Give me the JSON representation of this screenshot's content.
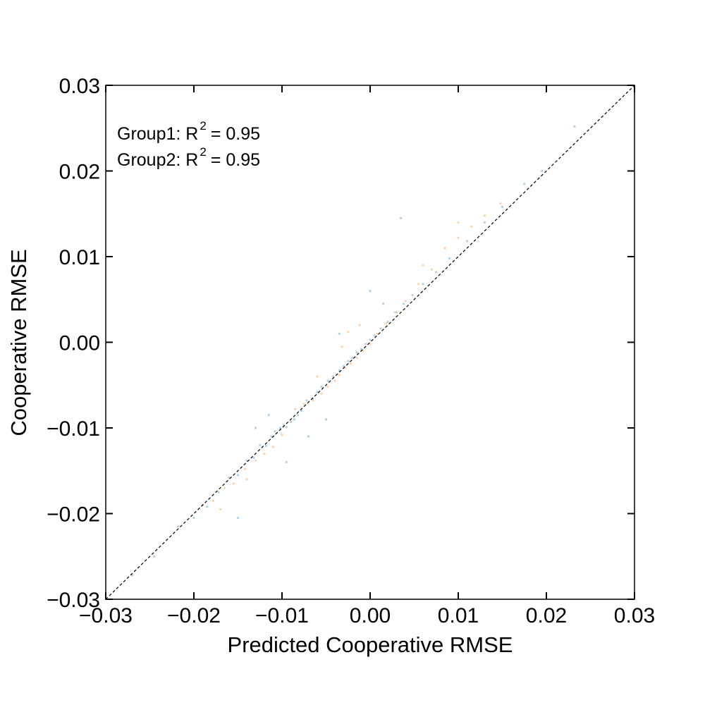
{
  "chart_data": {
    "type": "scatter",
    "title": "",
    "xlabel": "Predicted Cooperative RMSE",
    "ylabel": "Cooperative RMSE",
    "xlim": [
      -0.03,
      0.03
    ],
    "ylim": [
      -0.03,
      0.03
    ],
    "xticks": [
      "−0.03",
      "−0.02",
      "−0.01",
      "0.00",
      "0.01",
      "0.02",
      "0.03"
    ],
    "yticks": [
      "−0.03",
      "−0.02",
      "−0.01",
      "0.00",
      "0.01",
      "0.02",
      "0.03"
    ],
    "tick_values": [
      -0.03,
      -0.02,
      -0.01,
      0.0,
      0.01,
      0.02,
      0.03
    ],
    "grid": false,
    "reference_line": {
      "style": "dashed",
      "color": "#000000",
      "from": [
        -0.03,
        -0.03
      ],
      "to": [
        0.03,
        0.03
      ]
    },
    "annotations": [
      {
        "label": "Group1: R",
        "sup": "2",
        "value": "= 0.95"
      },
      {
        "label": "Group2: R",
        "sup": "2",
        "value": "= 0.95"
      }
    ],
    "series": [
      {
        "color": "#1f77b4",
        "points": [
          [
            -0.027,
            -0.0272
          ],
          [
            -0.0245,
            -0.025
          ],
          [
            -0.0218,
            -0.0215
          ],
          [
            -0.02,
            -0.0205
          ],
          [
            -0.0185,
            -0.0192
          ],
          [
            -0.0172,
            -0.0175
          ],
          [
            -0.016,
            -0.0158
          ],
          [
            -0.015,
            -0.0155
          ],
          [
            -0.014,
            -0.0138
          ],
          [
            -0.0132,
            -0.0135
          ],
          [
            -0.0125,
            -0.012
          ],
          [
            -0.0118,
            -0.0121
          ],
          [
            -0.0112,
            -0.011
          ],
          [
            -0.0108,
            -0.0104
          ],
          [
            -0.0102,
            -0.01
          ],
          [
            -0.0098,
            -0.0097
          ],
          [
            -0.0095,
            -0.0099
          ],
          [
            -0.009,
            -0.0093
          ],
          [
            -0.0086,
            -0.009
          ],
          [
            -0.0082,
            -0.0085
          ],
          [
            -0.0078,
            -0.008
          ],
          [
            -0.0072,
            -0.0068
          ],
          [
            -0.0065,
            -0.0066
          ],
          [
            -0.006,
            -0.0058
          ],
          [
            -0.0055,
            -0.0052
          ],
          [
            -0.0048,
            -0.0045
          ],
          [
            -0.0042,
            -0.004
          ],
          [
            -0.0035,
            -0.0033
          ],
          [
            -0.003,
            -0.0028
          ],
          [
            -0.0025,
            -0.0022
          ],
          [
            -0.002,
            -0.0018
          ],
          [
            -0.0015,
            -0.0012
          ],
          [
            -0.001,
            -0.0008
          ],
          [
            -0.0005,
            -0.0002
          ],
          [
            0.0,
            0.0003
          ],
          [
            0.0005,
            0.0008
          ],
          [
            0.0012,
            0.0016
          ],
          [
            0.002,
            0.0024
          ],
          [
            0.003,
            0.0035
          ],
          [
            0.0038,
            0.0045
          ],
          [
            0.0048,
            0.0055
          ],
          [
            0.006,
            0.0068
          ],
          [
            0.0075,
            0.0082
          ],
          [
            0.009,
            0.0098
          ],
          [
            0.011,
            0.0118
          ],
          [
            0.013,
            0.014
          ],
          [
            0.015,
            0.0158
          ],
          [
            0.0175,
            0.0185
          ],
          [
            0.0195,
            0.02
          ],
          [
            0.0232,
            0.0252
          ],
          [
            -0.0115,
            -0.0085
          ],
          [
            -0.007,
            -0.011
          ],
          [
            -0.0035,
            0.001
          ],
          [
            0.0035,
            0.0145
          ],
          [
            -0.015,
            -0.0205
          ],
          [
            -0.0095,
            -0.014
          ],
          [
            0.0,
            0.006
          ],
          [
            -0.005,
            -0.009
          ],
          [
            0.0015,
            0.0045
          ],
          [
            -0.013,
            -0.01
          ]
        ]
      },
      {
        "color": "#ff7f0e",
        "points": [
          [
            -0.019,
            -0.019
          ],
          [
            -0.0178,
            -0.0185
          ],
          [
            -0.0165,
            -0.017
          ],
          [
            -0.0155,
            -0.0165
          ],
          [
            -0.0142,
            -0.0148
          ],
          [
            -0.013,
            -0.0138
          ],
          [
            -0.012,
            -0.013
          ],
          [
            -0.011,
            -0.0122
          ],
          [
            -0.01,
            -0.0108
          ],
          [
            -0.0085,
            -0.0078
          ],
          [
            -0.0075,
            -0.0072
          ],
          [
            -0.0065,
            -0.0068
          ],
          [
            -0.0055,
            -0.006
          ],
          [
            -0.0048,
            -0.0052
          ],
          [
            -0.004,
            -0.0045
          ],
          [
            -0.0035,
            -0.0038
          ],
          [
            -0.0028,
            -0.003
          ],
          [
            -0.0022,
            -0.0025
          ],
          [
            -0.0015,
            -0.0018
          ],
          [
            -0.0008,
            -0.001
          ],
          [
            0.0,
            -0.0002
          ],
          [
            0.0008,
            0.001
          ],
          [
            0.0018,
            0.0022
          ],
          [
            0.0028,
            0.0035
          ],
          [
            0.004,
            0.0048
          ],
          [
            0.0055,
            0.0068
          ],
          [
            0.007,
            0.0085
          ],
          [
            0.0085,
            0.011
          ],
          [
            0.01,
            0.0122
          ],
          [
            0.0115,
            0.0135
          ],
          [
            0.013,
            0.0148
          ],
          [
            0.0148,
            0.0162
          ],
          [
            -0.0032,
            -0.0005
          ],
          [
            -0.006,
            -0.004
          ],
          [
            -0.0025,
            0.0012
          ],
          [
            -0.017,
            -0.0195
          ],
          [
            0.006,
            0.009
          ],
          [
            0.01,
            0.014
          ],
          [
            -0.014,
            -0.016
          ],
          [
            -0.0012,
            0.002
          ]
        ]
      }
    ]
  }
}
